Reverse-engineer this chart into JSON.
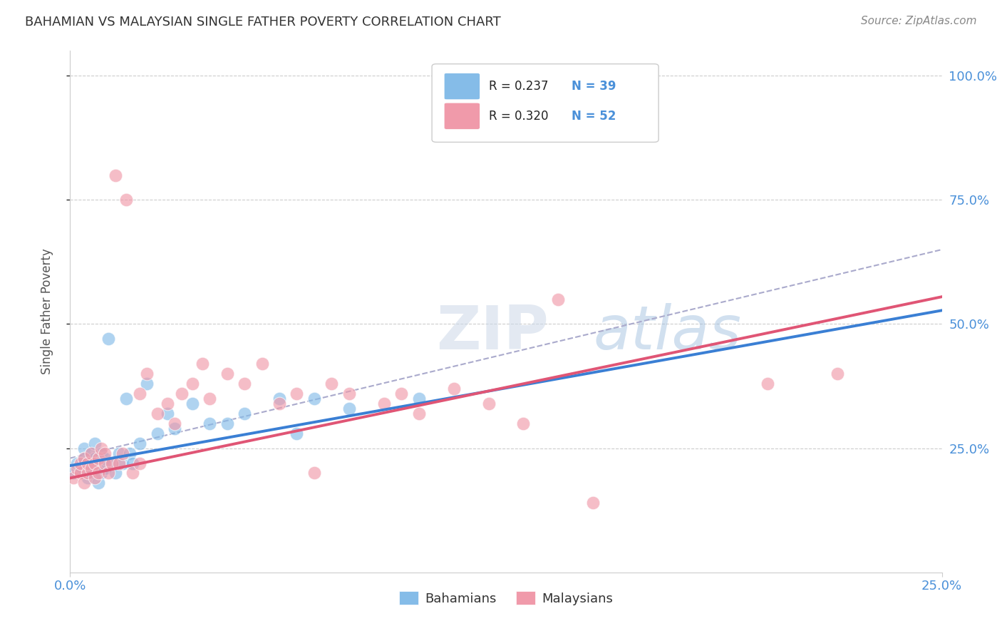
{
  "title": "BAHAMIAN VS MALAYSIAN SINGLE FATHER POVERTY CORRELATION CHART",
  "source": "Source: ZipAtlas.com",
  "ylabel": "Single Father Poverty",
  "xlim": [
    0.0,
    0.25
  ],
  "ylim": [
    0.0,
    1.05
  ],
  "R_bahamian": 0.237,
  "N_bahamian": 39,
  "R_malaysian": 0.32,
  "N_malaysian": 52,
  "color_bahamian": "#85bce8",
  "color_malaysian": "#f09aaa",
  "line_color_bahamian": "#3a7fd4",
  "line_color_malaysian": "#e05575",
  "dash_line_color": "#aaaacc",
  "watermark": "ZIPatlas",
  "background_color": "#ffffff",
  "grid_color": "#cccccc",
  "bahamian_x": [
    0.001,
    0.002,
    0.003,
    0.004,
    0.004,
    0.005,
    0.005,
    0.006,
    0.006,
    0.007,
    0.007,
    0.008,
    0.008,
    0.009,
    0.009,
    0.01,
    0.01,
    0.011,
    0.012,
    0.013,
    0.014,
    0.015,
    0.016,
    0.017,
    0.018,
    0.02,
    0.022,
    0.025,
    0.028,
    0.03,
    0.035,
    0.04,
    0.045,
    0.05,
    0.06,
    0.065,
    0.07,
    0.08,
    0.1
  ],
  "bahamian_y": [
    0.2,
    0.22,
    0.21,
    0.25,
    0.23,
    0.22,
    0.19,
    0.24,
    0.2,
    0.23,
    0.26,
    0.18,
    0.22,
    0.24,
    0.2,
    0.21,
    0.23,
    0.47,
    0.22,
    0.2,
    0.24,
    0.22,
    0.35,
    0.24,
    0.22,
    0.26,
    0.38,
    0.28,
    0.32,
    0.29,
    0.34,
    0.3,
    0.3,
    0.32,
    0.35,
    0.28,
    0.35,
    0.33,
    0.35
  ],
  "malaysian_x": [
    0.001,
    0.002,
    0.003,
    0.003,
    0.004,
    0.004,
    0.005,
    0.005,
    0.006,
    0.006,
    0.007,
    0.007,
    0.008,
    0.008,
    0.009,
    0.01,
    0.01,
    0.011,
    0.012,
    0.013,
    0.014,
    0.015,
    0.016,
    0.018,
    0.02,
    0.02,
    0.022,
    0.025,
    0.028,
    0.03,
    0.032,
    0.035,
    0.038,
    0.04,
    0.045,
    0.05,
    0.055,
    0.06,
    0.065,
    0.07,
    0.075,
    0.08,
    0.09,
    0.095,
    0.1,
    0.11,
    0.12,
    0.13,
    0.14,
    0.15,
    0.2,
    0.22
  ],
  "malaysian_y": [
    0.19,
    0.21,
    0.2,
    0.22,
    0.18,
    0.23,
    0.2,
    0.22,
    0.21,
    0.24,
    0.19,
    0.22,
    0.2,
    0.23,
    0.25,
    0.22,
    0.24,
    0.2,
    0.22,
    0.8,
    0.22,
    0.24,
    0.75,
    0.2,
    0.22,
    0.36,
    0.4,
    0.32,
    0.34,
    0.3,
    0.36,
    0.38,
    0.42,
    0.35,
    0.4,
    0.38,
    0.42,
    0.34,
    0.36,
    0.2,
    0.38,
    0.36,
    0.34,
    0.36,
    0.32,
    0.37,
    0.34,
    0.3,
    0.55,
    0.14,
    0.38,
    0.4
  ],
  "bah_trend_x0": 0.0,
  "bah_trend_y0": 0.215,
  "bah_trend_x1": 0.1,
  "bah_trend_y1": 0.34,
  "mal_trend_x0": 0.0,
  "mal_trend_y0": 0.19,
  "mal_trend_x1": 0.25,
  "mal_trend_y1": 0.555,
  "dash_trend_x0": 0.0,
  "dash_trend_y0": 0.23,
  "dash_trend_x1": 0.25,
  "dash_trend_y1": 0.65
}
